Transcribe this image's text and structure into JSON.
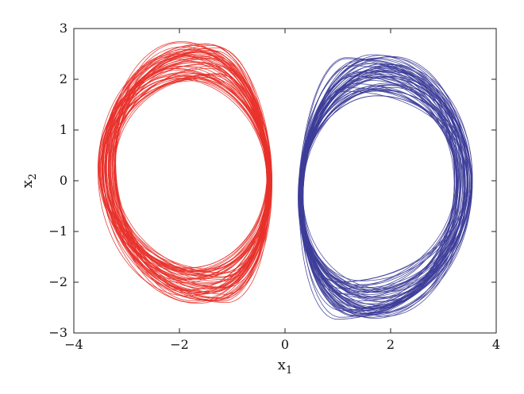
{
  "chart_data": {
    "type": "line",
    "title": "",
    "xlabel": {
      "base": "x",
      "sub": "1"
    },
    "ylabel": {
      "base": "x",
      "sub": "2"
    },
    "xlim": [
      -4,
      4
    ],
    "ylim": [
      -3,
      3
    ],
    "xticks": [
      -4,
      -2,
      0,
      2,
      4
    ],
    "yticks": [
      -3,
      -2,
      -1,
      0,
      1,
      2,
      3
    ],
    "grid": false,
    "legend": "none",
    "series": [
      {
        "color": "#e8312a",
        "attractor_wing": "left",
        "x_range": [
          -3.55,
          0.35
        ],
        "y_range": [
          -2.45,
          2.75
        ],
        "orbit_count": 60
      },
      {
        "color": "#3d3d99",
        "attractor_wing": "right",
        "x_range": [
          -0.35,
          3.55
        ],
        "y_range": [
          -2.75,
          2.45
        ],
        "orbit_count": 60
      }
    ]
  }
}
